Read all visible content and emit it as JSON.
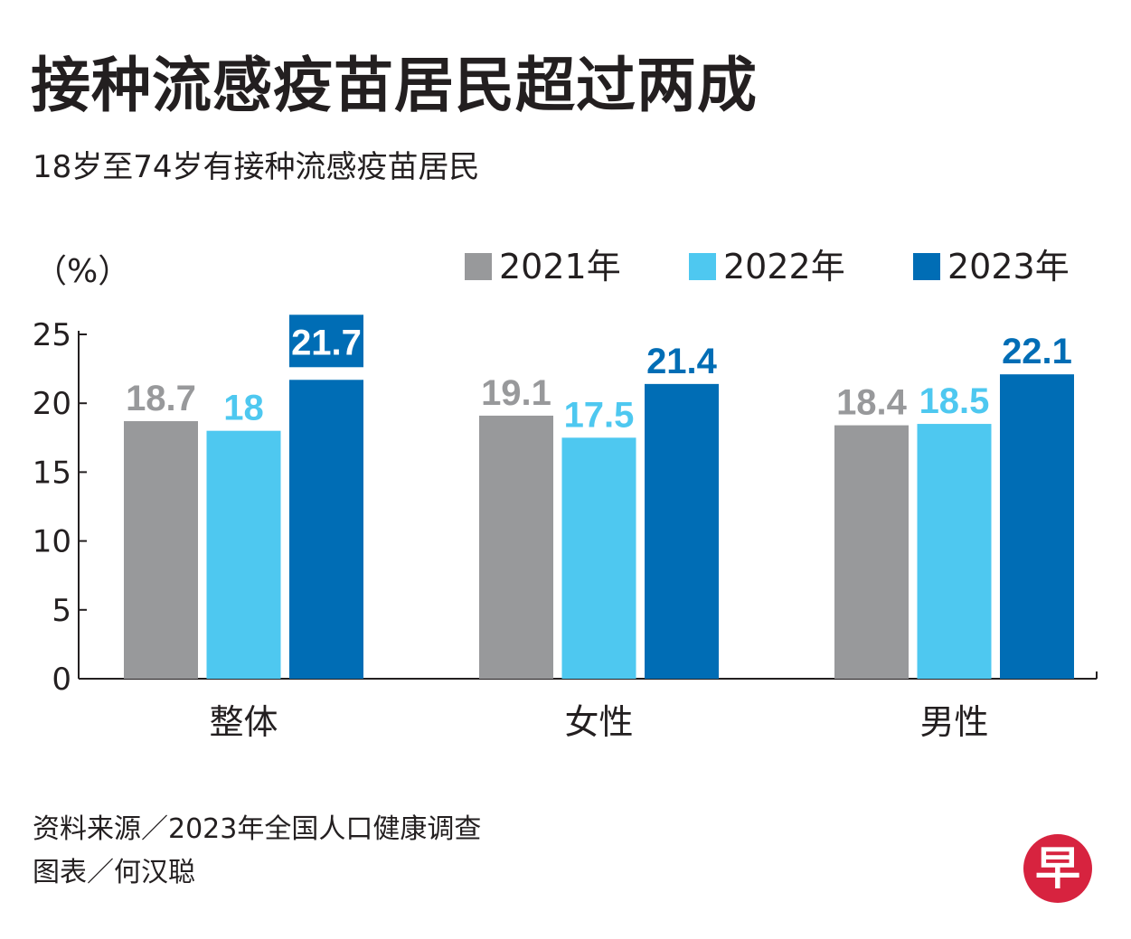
{
  "header": {
    "title": "接种流感疫苗居民超过两成",
    "subtitle": "18岁至74岁有接种流感疫苗居民"
  },
  "colors": {
    "y2021": "#98999b",
    "y2022": "#4ec8f0",
    "y2023": "#006db5",
    "axis": "#231f20",
    "logo": "#d7233f"
  },
  "chart_data": {
    "type": "bar",
    "title": "接种流感疫苗居民超过两成",
    "subtitle": "18岁至74岁有接种流感疫苗居民",
    "ylabel": "（%）",
    "xlabel": "",
    "ylim": [
      0,
      25
    ],
    "yticks": [
      0,
      5,
      10,
      15,
      20,
      25
    ],
    "categories": [
      "整体",
      "女性",
      "男性"
    ],
    "series": [
      {
        "name": "2021年",
        "color": "#98999b",
        "values": [
          18.7,
          19.1,
          18.4
        ],
        "labels": [
          "18.7",
          "19.1",
          "18.4"
        ]
      },
      {
        "name": "2022年",
        "color": "#4ec8f0",
        "values": [
          18,
          17.5,
          18.5
        ],
        "labels": [
          "18",
          "17.5",
          "18.5"
        ]
      },
      {
        "name": "2023年",
        "color": "#006db5",
        "values": [
          21.7,
          21.4,
          22.1
        ],
        "labels": [
          "21.7",
          "21.4",
          "22.1"
        ]
      }
    ],
    "legend_position": "top-right"
  },
  "footer": {
    "source": "资料来源／2023年全国人口健康调查",
    "credit": "图表／何汉聪"
  },
  "logo": {
    "text": "早"
  }
}
